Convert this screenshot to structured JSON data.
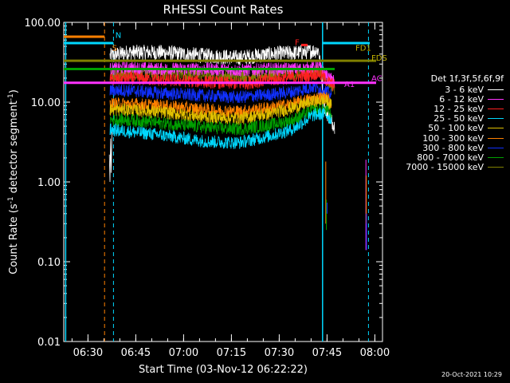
{
  "chart_data": {
    "type": "line",
    "title": "RHESSI Count Rates",
    "xlabel": "Start Time (03-Nov-12 06:22:22)",
    "ylabel": "Count Rate (s",
    "ylabel_sup": "-1",
    "ylabel_tail": " detector segment",
    "ylabel_sup2": "-1",
    "ylabel_close": ")",
    "yscale": "log",
    "ylim": [
      0.01,
      100
    ],
    "xlim_minutes": [
      0,
      100
    ],
    "yticks": [
      "100.00",
      "10.00",
      "1.00",
      "0.10",
      "0.01"
    ],
    "xticks": [
      {
        "label": "06:30",
        "m": 7.6
      },
      {
        "label": "06:45",
        "m": 22.6
      },
      {
        "label": "07:00",
        "m": 37.6
      },
      {
        "label": "07:15",
        "m": 52.6
      },
      {
        "label": "07:30",
        "m": 67.6
      },
      {
        "label": "07:45",
        "m": 82.6
      },
      {
        "label": "08:00",
        "m": 97.6
      }
    ],
    "legend_title": "Det 1f,3f,5f,6f,9f",
    "series": [
      {
        "name": "3 - 6 keV",
        "color": "#ffffff",
        "profile": [
          [
            14.5,
            38
          ],
          [
            20,
            42
          ],
          [
            30,
            42
          ],
          [
            45,
            38
          ],
          [
            55,
            36
          ],
          [
            65,
            40
          ],
          [
            75,
            42
          ],
          [
            80,
            45
          ],
          [
            82,
            8
          ],
          [
            85,
            5
          ]
        ]
      },
      {
        "name": "6 - 12 keV",
        "color": "#ff33ff",
        "profile": [
          [
            14.5,
            26
          ],
          [
            20,
            27
          ],
          [
            30,
            26
          ],
          [
            45,
            26
          ],
          [
            55,
            25
          ],
          [
            65,
            26
          ],
          [
            75,
            26
          ],
          [
            80,
            28
          ],
          [
            83,
            20
          ],
          [
            85,
            18
          ]
        ]
      },
      {
        "name": "12 - 25 keV",
        "color": "#ff2020",
        "profile": [
          [
            14.5,
            19
          ],
          [
            20,
            20
          ],
          [
            30,
            19
          ],
          [
            45,
            18
          ],
          [
            55,
            17
          ],
          [
            65,
            19
          ],
          [
            75,
            21
          ],
          [
            80,
            23
          ],
          [
            83,
            18
          ],
          [
            85,
            16
          ]
        ]
      },
      {
        "name": "25 - 50 keV",
        "color": "#00d8ff",
        "profile": [
          [
            14.5,
            4.5
          ],
          [
            20,
            4.3
          ],
          [
            30,
            3.9
          ],
          [
            45,
            3.2
          ],
          [
            55,
            3.1
          ],
          [
            65,
            3.8
          ],
          [
            72,
            4.6
          ],
          [
            78,
            6.8
          ],
          [
            82,
            7.2
          ],
          [
            84,
            6
          ]
        ]
      },
      {
        "name": "50 - 100 keV",
        "color": "#e0c000",
        "profile": [
          [
            14.5,
            8
          ],
          [
            20,
            8
          ],
          [
            30,
            7.5
          ],
          [
            45,
            6.5
          ],
          [
            55,
            6.2
          ],
          [
            65,
            7.2
          ],
          [
            72,
            8.5
          ],
          [
            78,
            10
          ],
          [
            82,
            10.5
          ],
          [
            84,
            9
          ]
        ]
      },
      {
        "name": "100 - 300 keV",
        "color": "#ff8000",
        "profile": [
          [
            14.5,
            9.5
          ],
          [
            20,
            9.5
          ],
          [
            30,
            9
          ],
          [
            45,
            8
          ],
          [
            55,
            7.6
          ],
          [
            65,
            8.5
          ],
          [
            72,
            9.5
          ],
          [
            78,
            11
          ],
          [
            82,
            11.5
          ],
          [
            84,
            10
          ]
        ]
      },
      {
        "name": "300 - 800 keV",
        "color": "#1030ff",
        "profile": [
          [
            14.5,
            14
          ],
          [
            20,
            14
          ],
          [
            30,
            13
          ],
          [
            45,
            12
          ],
          [
            55,
            11.5
          ],
          [
            65,
            12.5
          ],
          [
            72,
            13.5
          ],
          [
            78,
            15.5
          ],
          [
            82,
            14
          ],
          [
            84,
            12
          ]
        ]
      },
      {
        "name": "800 - 7000 keV",
        "color": "#00a000",
        "profile": [
          [
            14.5,
            6
          ],
          [
            20,
            6
          ],
          [
            30,
            5.5
          ],
          [
            45,
            4.8
          ],
          [
            55,
            4.6
          ],
          [
            65,
            5.2
          ],
          [
            72,
            6
          ],
          [
            78,
            7.8
          ],
          [
            82,
            8
          ],
          [
            84,
            7
          ]
        ]
      },
      {
        "name": "7000 - 15000 keV",
        "color": "#808000",
        "profile": [
          [
            14.5,
            22
          ],
          [
            20,
            23
          ],
          [
            30,
            23
          ],
          [
            45,
            22
          ],
          [
            55,
            21
          ],
          [
            65,
            22
          ],
          [
            75,
            23
          ],
          [
            80,
            25
          ],
          [
            83,
            18
          ],
          [
            85,
            15
          ]
        ]
      }
    ],
    "annotations": [
      {
        "text": "S",
        "color": "#ff8000",
        "m": 15.2,
        "y": 44
      },
      {
        "text": "N",
        "color": "#00d8ff",
        "m": 16.2,
        "y": 64
      },
      {
        "text": "F",
        "color": "#ff2020",
        "m": 72.5,
        "y": 52
      },
      {
        "text": "FD1",
        "color": "#c0b000",
        "m": 91.5,
        "y": 44
      },
      {
        "text": "FDS",
        "color": "#c0b000",
        "m": 96.5,
        "y": 33
      },
      {
        "text": "AC",
        "color": "#ff33ff",
        "m": 96.5,
        "y": 18.5
      },
      {
        "text": "A1",
        "color": "#ff33ff",
        "m": 88,
        "y": 15.5
      }
    ]
  },
  "timestamp": "20-Oct-2021 10:29"
}
